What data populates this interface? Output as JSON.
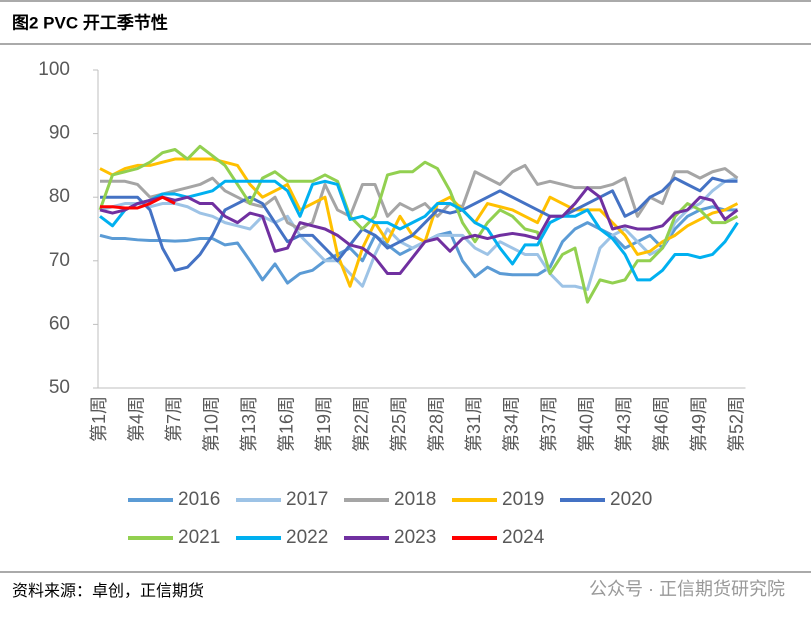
{
  "chart_data": {
    "type": "line",
    "title": "图2   PVC 开工季节性",
    "source": "资料来源：卓创，正信期货",
    "watermark": "公众号 · 正信期货研究院",
    "categories": [
      "第1周",
      null,
      null,
      "第4周",
      null,
      null,
      "第7周",
      null,
      null,
      "第10周",
      null,
      null,
      "第13周",
      null,
      null,
      "第16周",
      null,
      null,
      "第19周",
      null,
      null,
      "第22周",
      null,
      null,
      "第25周",
      null,
      null,
      "第28周",
      null,
      null,
      "第31周",
      null,
      null,
      "第34周",
      null,
      null,
      "第37周",
      null,
      null,
      "第40周",
      null,
      null,
      "第43周",
      null,
      null,
      "第46周",
      null,
      null,
      "第49周",
      null,
      null,
      "第52周"
    ],
    "ylim": [
      50,
      100
    ],
    "yticks": [
      50,
      60,
      70,
      80,
      90,
      100
    ],
    "legend": "bottom",
    "series": [
      {
        "name": "2016",
        "color": "#5b9bd5",
        "values": [
          74,
          73.5,
          73.5,
          73.3,
          73.2,
          73.2,
          73.1,
          73.2,
          73.5,
          73.5,
          72.5,
          72.8,
          70,
          67,
          69.5,
          66.5,
          68,
          68.5,
          70,
          71,
          72,
          70,
          74,
          72.5,
          71,
          72,
          73,
          74,
          74.5,
          70,
          67.5,
          69,
          68,
          67.8,
          67.8,
          67.8,
          69,
          73,
          75,
          76,
          75,
          74,
          72,
          73,
          74,
          72,
          75,
          77,
          78,
          78.5,
          78,
          78
        ]
      },
      {
        "name": "2017",
        "color": "#9dc3e6",
        "values": [
          78,
          78.5,
          79,
          79,
          78.5,
          79,
          79,
          78.5,
          77.5,
          77,
          76,
          75.5,
          75,
          77,
          76,
          77,
          74,
          72,
          70,
          70,
          68,
          66,
          71,
          75,
          73,
          72,
          73,
          74,
          74,
          74,
          72,
          71,
          73,
          72,
          71,
          71,
          68,
          66,
          66,
          65.5,
          72,
          74,
          75,
          73,
          71,
          72,
          76,
          78,
          79,
          81,
          82.5,
          83
        ]
      },
      {
        "name": "2018",
        "color": "#a5a5a5",
        "values": [
          82.5,
          82.5,
          82.5,
          82,
          80,
          80.5,
          81,
          81.5,
          82,
          83,
          81,
          80,
          79,
          78.5,
          80,
          76,
          75,
          76,
          82,
          78,
          77,
          82,
          82,
          77,
          79,
          78,
          79,
          77,
          79,
          78.5,
          84,
          83,
          82,
          84,
          85,
          82,
          82.5,
          82,
          81.5,
          81.5,
          81.5,
          82,
          83,
          77,
          80,
          79,
          84,
          84,
          83,
          84,
          84.5,
          83
        ]
      },
      {
        "name": "2019",
        "color": "#ffc000",
        "values": [
          84.5,
          83.5,
          84.5,
          85,
          85,
          85.5,
          86,
          86,
          86,
          86,
          85.5,
          85,
          82,
          80,
          81,
          82,
          78,
          79,
          80,
          71,
          66,
          72,
          76,
          73,
          77,
          74,
          73,
          79,
          80,
          78,
          76,
          79,
          78.5,
          78,
          77,
          76,
          80,
          79,
          78,
          78,
          78,
          76,
          74,
          71,
          71.5,
          73,
          74,
          75.5,
          76.5,
          77.5,
          78,
          79
        ]
      },
      {
        "name": "2020",
        "color": "#4472c4",
        "values": [
          80,
          80,
          80,
          80,
          78,
          72,
          68.5,
          69,
          71,
          74,
          78,
          79,
          80,
          79,
          76,
          73,
          74,
          74,
          72,
          70,
          72.5,
          75,
          74,
          72,
          73,
          74,
          76,
          78,
          77.5,
          78,
          79,
          80,
          81,
          80,
          79,
          78,
          77,
          77,
          78,
          79,
          80,
          81,
          77,
          78,
          80,
          81,
          83,
          82,
          81,
          83,
          82.5,
          82.5
        ]
      },
      {
        "name": "2021",
        "color": "#92d050",
        "values": [
          78,
          83.5,
          84,
          84.5,
          85.5,
          87,
          87.5,
          86,
          88,
          86.5,
          85,
          82,
          79,
          83,
          84,
          82.5,
          82.5,
          82.5,
          83.5,
          82.5,
          77,
          75,
          77,
          83.5,
          84,
          84,
          85.5,
          84.5,
          81,
          76,
          73,
          76,
          78,
          77,
          75,
          74.5,
          68,
          71,
          72,
          63.5,
          67,
          66.5,
          67,
          70,
          70,
          72,
          77,
          79,
          78,
          76,
          76,
          77
        ]
      },
      {
        "name": "2022",
        "color": "#00b0f0",
        "values": [
          77,
          75.5,
          78,
          79,
          79.5,
          80.5,
          80.5,
          80,
          80.5,
          81,
          82.5,
          82.5,
          82.5,
          82.5,
          82.5,
          81,
          77,
          82,
          82.5,
          82,
          76.5,
          77,
          76,
          76,
          75,
          76,
          77,
          79,
          79,
          78,
          76,
          75,
          72,
          69.5,
          72.5,
          72.5,
          76,
          77,
          77,
          78,
          75,
          73.5,
          71,
          67,
          67,
          68.5,
          71,
          71,
          70.5,
          71,
          73,
          76
        ]
      },
      {
        "name": "2023",
        "color": "#7030a0",
        "values": [
          78,
          77.5,
          78,
          79,
          79.5,
          80,
          79.5,
          80,
          79,
          79,
          77,
          76,
          77.5,
          77,
          71.5,
          72,
          76,
          75.5,
          75,
          74,
          72.5,
          72,
          70.5,
          68,
          68,
          70.5,
          73,
          73.5,
          71.5,
          73.5,
          74,
          73.5,
          74,
          74.3,
          74,
          73.5,
          77,
          77,
          79,
          81.5,
          80,
          75,
          75.5,
          75,
          75,
          75.5,
          77.5,
          78,
          80,
          79.5,
          76.5,
          78
        ]
      },
      {
        "name": "2024",
        "color": "#ff0000",
        "values": [
          78.5,
          78.5,
          78.3,
          78.3,
          79,
          80,
          79,
          null,
          null,
          null,
          null,
          null,
          null,
          null,
          null,
          null,
          null,
          null,
          null,
          null,
          null,
          null,
          null,
          null,
          null,
          null,
          null,
          null,
          null,
          null,
          null,
          null,
          null,
          null,
          null,
          null,
          null,
          null,
          null,
          null,
          null,
          null,
          null,
          null,
          null,
          null,
          null,
          null,
          null,
          null,
          null,
          null
        ]
      }
    ]
  }
}
